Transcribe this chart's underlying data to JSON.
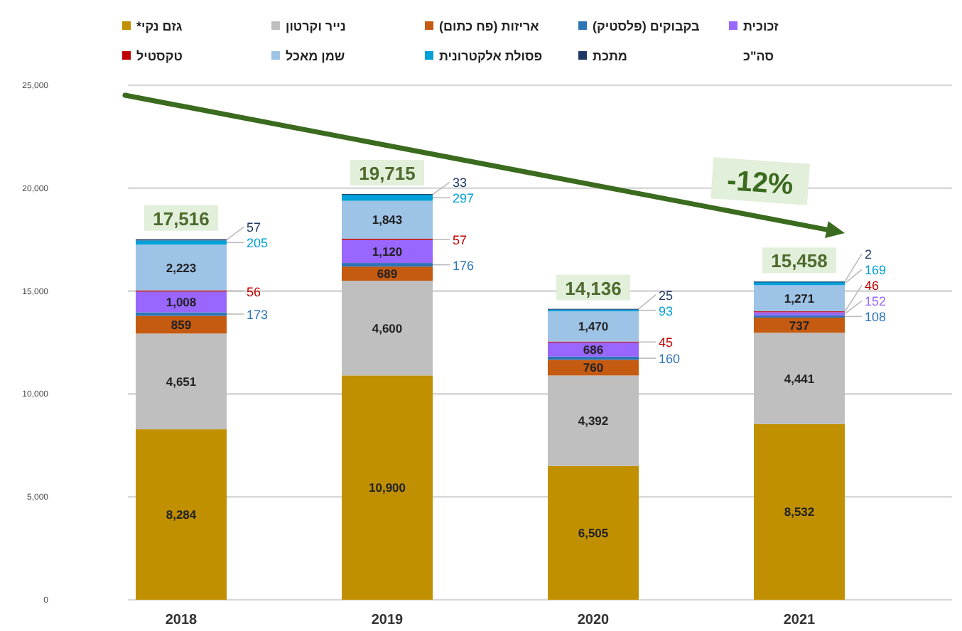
{
  "chart_data": {
    "type": "bar",
    "stacked": true,
    "categories": [
      "2018",
      "2019",
      "2020",
      "2021"
    ],
    "ylim": [
      0,
      25000
    ],
    "yticks": [
      0,
      {
        "value": 5000,
        "label": "5,000"
      },
      {
        "value": 10000,
        "label": "10,000"
      },
      {
        "value": 15000,
        "label": "15,000"
      },
      {
        "value": 20000,
        "label": "20,000"
      },
      {
        "value": 25000,
        "label": "25,000"
      }
    ],
    "grid": "y",
    "legend": "top",
    "series": [
      {
        "name": "גזם נקי*",
        "color": "#c09000",
        "values": [
          8284,
          10900,
          6505,
          8532
        ],
        "value_labels": [
          "8,284",
          "10,900",
          "6,505",
          "8,532"
        ]
      },
      {
        "name": "נייר וקרטון",
        "color": "#bfbfbf",
        "values": [
          4651,
          4600,
          4392,
          4441
        ],
        "value_labels": [
          "4,651",
          "4,600",
          "4,392",
          "4,441"
        ]
      },
      {
        "name": "אריזות (פח כתום)",
        "color": "#c55a11",
        "values": [
          859,
          689,
          760,
          737
        ],
        "value_labels": [
          "859",
          "689",
          "760",
          "737"
        ]
      },
      {
        "name": "בקבוקים (פלסטיק)",
        "color": "#2e75b6",
        "values": [
          173,
          176,
          160,
          108
        ],
        "value_labels": [
          "173",
          "176",
          "160",
          "108"
        ]
      },
      {
        "name": "זכוכית",
        "color": "#9966ff",
        "values": [
          1008,
          1120,
          686,
          152
        ],
        "value_labels": [
          "1,008",
          "1,120",
          "686",
          "152"
        ]
      },
      {
        "name": "טקסטיל",
        "color": "#c00000",
        "values": [
          56,
          57,
          45,
          46
        ],
        "value_labels": [
          "56",
          "57",
          "45",
          "46"
        ]
      },
      {
        "name": "שמן מאכל",
        "color": "#9dc3e6",
        "values": [
          2223,
          1843,
          1470,
          1271
        ],
        "value_labels": [
          "2,223",
          "1,843",
          "1,470",
          "1,271"
        ]
      },
      {
        "name": "פסולת אלקטרונית",
        "color": "#00a0d8",
        "values": [
          205,
          297,
          93,
          169
        ],
        "value_labels": [
          "205",
          "297",
          "93",
          "169"
        ]
      },
      {
        "name": "מתכת",
        "color": "#1f3864",
        "values": [
          57,
          33,
          25,
          2
        ],
        "value_labels": [
          "57",
          "33",
          "25",
          "2"
        ]
      }
    ],
    "totals": [
      "17,516",
      "19,715",
      "14,136",
      "15,458"
    ],
    "annotations": [
      "-12%",
      "סה\"כ"
    ]
  }
}
